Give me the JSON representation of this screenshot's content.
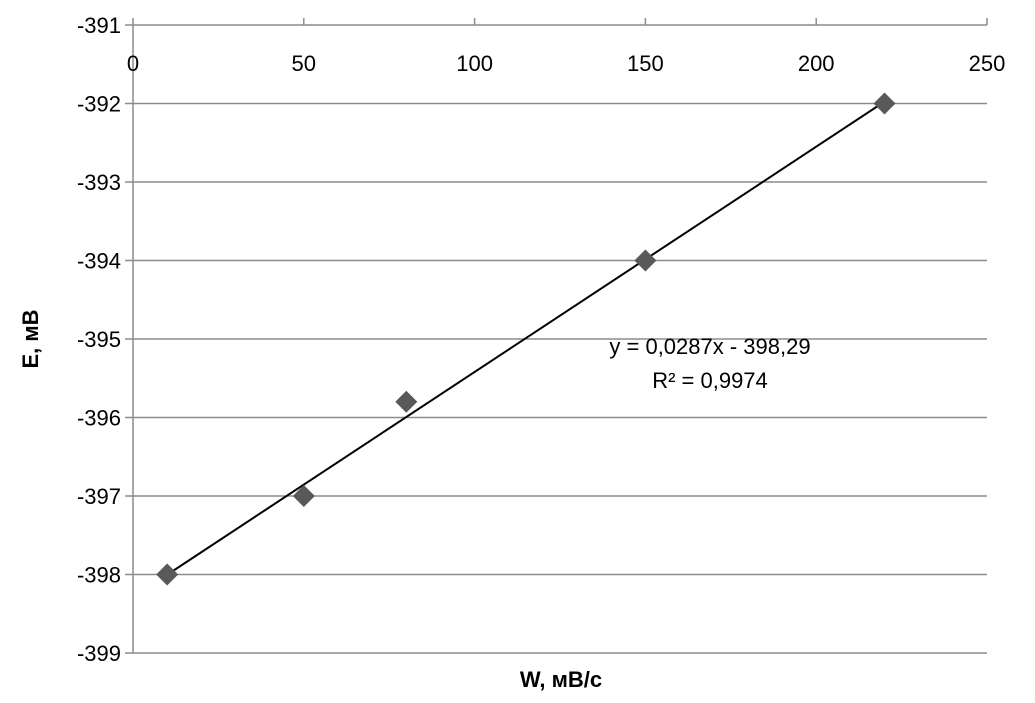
{
  "chart_data": {
    "type": "scatter",
    "title": "",
    "xlabel": "W, мВ/с",
    "ylabel": "E, мВ",
    "xlim": [
      0,
      250
    ],
    "ylim": [
      -399,
      -391
    ],
    "x_ticks": [
      "0",
      "50",
      "100",
      "150",
      "200",
      "250"
    ],
    "y_ticks": [
      "-391",
      "-392",
      "-393",
      "-394",
      "-395",
      "-396",
      "-397",
      "-398",
      "-399"
    ],
    "x_axis_position": "top",
    "grid": "horizontal",
    "legend": "none",
    "series": [
      {
        "points": [
          {
            "x": 10,
            "y": -398.0
          },
          {
            "x": 50,
            "y": -397.0
          },
          {
            "x": 80,
            "y": -395.8
          },
          {
            "x": 150,
            "y": -394.0
          },
          {
            "x": 220,
            "y": -392.0
          }
        ],
        "marker": "diamond",
        "color": "#595959"
      }
    ],
    "trendline": {
      "type": "linear",
      "slope": 0.0287,
      "intercept": -398.29,
      "x_range": [
        10,
        220
      ],
      "color": "#000000",
      "equation_label": "y = 0,0287x - 398,29",
      "r2_label": "R² = 0,9974"
    },
    "colors": {
      "grid": "#8c8c8c",
      "axis": "#8c8c8c",
      "marker": "#595959",
      "line": "#000000"
    }
  }
}
